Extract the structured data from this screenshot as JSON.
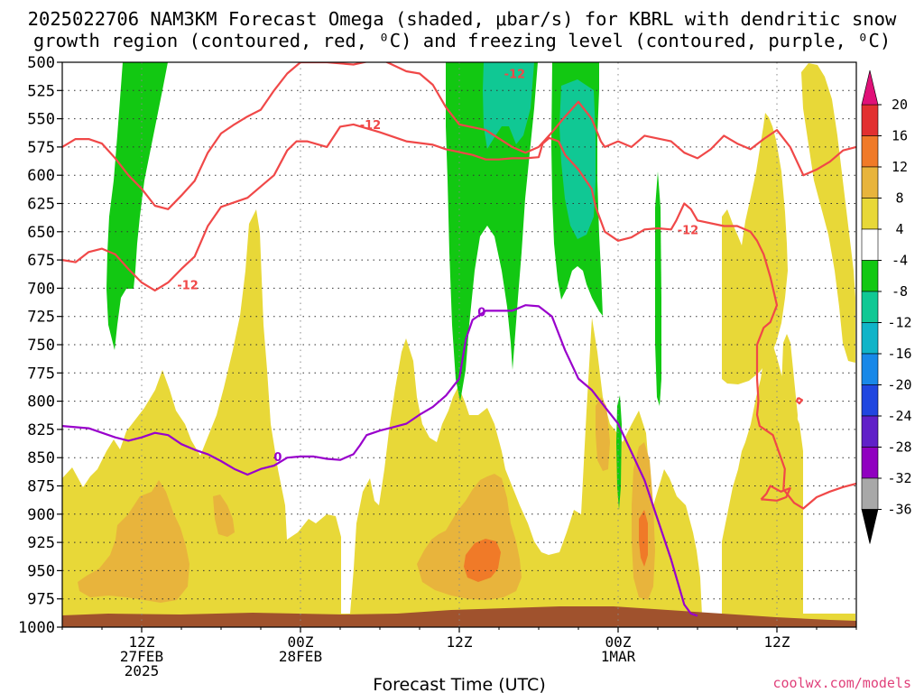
{
  "title_line1": "2025022706 NAM3KM Forecast Omega (shaded, μbar/s) for KBRL with dendritic snow",
  "title_line2": "growth region (contoured, red, ⁰C) and freezing level (contoured, purple, ⁰C)",
  "xlabel": "Forecast Time (UTC)",
  "credit": "coolwx.com/models",
  "chart_data": {
    "type": "heatmap",
    "x_ticks": [
      {
        "hour": 6,
        "lines": [
          "12Z",
          "27FEB",
          "2025"
        ]
      },
      {
        "hour": 18,
        "lines": [
          "00Z",
          "28FEB"
        ]
      },
      {
        "hour": 30,
        "lines": [
          "12Z"
        ]
      },
      {
        "hour": 42,
        "lines": [
          "00Z",
          "1MAR"
        ]
      },
      {
        "hour": 54,
        "lines": [
          "12Z"
        ]
      }
    ],
    "xlim_hours": [
      0,
      60
    ],
    "y_ticks": [
      500,
      525,
      550,
      575,
      600,
      625,
      650,
      675,
      700,
      725,
      750,
      775,
      800,
      825,
      850,
      875,
      900,
      925,
      950,
      975,
      1000
    ],
    "ylim_mb": [
      500,
      1000
    ],
    "grid": true,
    "colorbar_ticks": [
      20,
      16,
      12,
      8,
      4,
      -4,
      -8,
      -12,
      -16,
      -20,
      -24,
      -28,
      -32,
      -36
    ],
    "colorbar_colors": [
      "#e23030",
      "#f07a28",
      "#e8b43c",
      "#e8d838",
      "#ffffff",
      "#12c812",
      "#10c894",
      "#10b4c8",
      "#1888e8",
      "#2046e0",
      "#6020c8",
      "#9000c0",
      "#a8a8a8"
    ],
    "colorbar_top_color": "#e01078",
    "colorbar_bottom_color": "#000000",
    "contours": [
      {
        "name": "-12",
        "label": "-12",
        "color": "#f04848",
        "points": [
          [
            0,
            575
          ],
          [
            1,
            568
          ],
          [
            2,
            568
          ],
          [
            3,
            572
          ],
          [
            4,
            585
          ],
          [
            5,
            600
          ],
          [
            6,
            612
          ],
          [
            7,
            627
          ],
          [
            8,
            630
          ],
          [
            9,
            618
          ],
          [
            10,
            605
          ],
          [
            11,
            580
          ],
          [
            12,
            563
          ],
          [
            13,
            555
          ],
          [
            14,
            548
          ],
          [
            15,
            542
          ],
          [
            16,
            525
          ],
          [
            17,
            510
          ],
          [
            18,
            500
          ],
          [
            20,
            500
          ],
          [
            22,
            502
          ],
          [
            24,
            497
          ],
          [
            26,
            508
          ],
          [
            27,
            510
          ],
          [
            28,
            520
          ],
          [
            29,
            540
          ],
          [
            30,
            555
          ],
          [
            32,
            560
          ],
          [
            34,
            575
          ],
          [
            35,
            580
          ],
          [
            36,
            575
          ],
          [
            37,
            562
          ],
          [
            38,
            548
          ],
          [
            39,
            535
          ],
          [
            40,
            550
          ],
          [
            40.7,
            570
          ],
          [
            41,
            575
          ],
          [
            42,
            570
          ],
          [
            43,
            575
          ],
          [
            44,
            565
          ],
          [
            46,
            570
          ],
          [
            47,
            580
          ],
          [
            48,
            585
          ],
          [
            49,
            577
          ],
          [
            50,
            565
          ],
          [
            51,
            572
          ],
          [
            52,
            577
          ],
          [
            53,
            568
          ],
          [
            54,
            560
          ],
          [
            55,
            575
          ],
          [
            56,
            600
          ],
          [
            57,
            595
          ],
          [
            58,
            588
          ],
          [
            59,
            578
          ],
          [
            60,
            575
          ]
        ]
      },
      {
        "name": "-12",
        "label": "-12",
        "color": "#f04848",
        "points": [
          [
            0,
            675
          ],
          [
            1,
            677
          ],
          [
            2,
            668
          ],
          [
            3,
            665
          ],
          [
            4,
            670
          ],
          [
            5,
            683
          ],
          [
            6,
            695
          ],
          [
            7,
            702
          ],
          [
            8,
            695
          ],
          [
            9,
            683
          ],
          [
            10,
            672
          ],
          [
            11,
            645
          ],
          [
            12,
            628
          ],
          [
            14,
            620
          ],
          [
            16,
            600
          ],
          [
            17,
            578
          ],
          [
            17.7,
            570
          ],
          [
            18.5,
            570
          ],
          [
            20,
            575
          ],
          [
            21,
            557
          ],
          [
            22,
            555
          ],
          [
            24,
            562
          ],
          [
            26,
            570
          ],
          [
            28,
            573
          ],
          [
            29,
            577
          ],
          [
            31,
            582
          ],
          [
            32,
            586
          ],
          [
            33,
            586
          ],
          [
            34,
            585
          ],
          [
            35,
            585
          ],
          [
            36,
            584
          ],
          [
            36.3,
            572
          ],
          [
            36.8,
            567
          ],
          [
            37.5,
            570
          ],
          [
            38,
            582
          ],
          [
            39,
            595
          ],
          [
            40,
            612
          ],
          [
            40.3,
            628
          ],
          [
            41,
            650
          ],
          [
            42,
            658
          ],
          [
            43,
            655
          ],
          [
            44,
            648
          ],
          [
            45,
            647
          ],
          [
            46,
            648
          ],
          [
            46.4,
            640
          ],
          [
            47,
            625
          ],
          [
            47.5,
            630
          ],
          [
            48,
            640
          ],
          [
            50,
            645
          ],
          [
            51,
            645
          ],
          [
            52,
            650
          ],
          [
            52.5,
            658
          ],
          [
            53,
            670
          ],
          [
            53.5,
            690
          ],
          [
            54,
            715
          ],
          [
            53.5,
            730
          ],
          [
            53,
            735
          ],
          [
            52.5,
            750
          ],
          [
            52.5,
            780
          ],
          [
            52.6,
            800
          ],
          [
            52.5,
            812
          ],
          [
            52.7,
            822
          ],
          [
            53.7,
            830
          ],
          [
            54,
            840
          ],
          [
            54.6,
            860
          ],
          [
            54.5,
            878
          ],
          [
            55.3,
            890
          ],
          [
            56,
            895
          ],
          [
            57,
            885
          ],
          [
            58,
            880
          ],
          [
            59,
            876
          ],
          [
            60,
            873
          ]
        ]
      },
      {
        "name": "-12",
        "label": "-12",
        "color": "#f04848",
        "points": [
          [
            52.8,
            887
          ],
          [
            53.2,
            882
          ],
          [
            53.5,
            875
          ],
          [
            54.3,
            880
          ],
          [
            55,
            877
          ],
          [
            54.7,
            885
          ],
          [
            54,
            888
          ],
          [
            53,
            887
          ],
          [
            52.8,
            887
          ]
        ]
      },
      {
        "name": "-12",
        "label": "-12",
        "color": "#f04848",
        "points": [
          [
            55.6,
            797
          ],
          [
            55.9,
            799
          ],
          [
            55.7,
            802
          ],
          [
            55.5,
            800
          ],
          [
            55.6,
            797
          ]
        ]
      },
      {
        "name": "0",
        "label": "0",
        "color": "#9900cc",
        "points": [
          [
            0,
            822
          ],
          [
            2,
            824
          ],
          [
            4,
            832
          ],
          [
            5,
            835
          ],
          [
            6,
            832
          ],
          [
            7,
            828
          ],
          [
            8,
            830
          ],
          [
            9,
            838
          ],
          [
            10,
            843
          ],
          [
            11,
            847
          ],
          [
            12,
            853
          ],
          [
            13,
            860
          ],
          [
            14,
            865
          ],
          [
            15,
            860
          ],
          [
            16,
            857
          ],
          [
            17,
            850
          ],
          [
            18,
            849
          ],
          [
            19,
            849
          ],
          [
            20,
            851
          ],
          [
            21,
            852
          ],
          [
            22,
            847
          ],
          [
            22.5,
            839
          ],
          [
            23,
            830
          ],
          [
            24,
            826
          ],
          [
            25,
            823
          ],
          [
            26,
            820
          ],
          [
            27,
            812
          ],
          [
            28,
            805
          ],
          [
            29,
            795
          ],
          [
            30,
            780
          ],
          [
            30.5,
            745
          ],
          [
            31,
            728
          ],
          [
            32,
            720
          ],
          [
            33,
            720
          ],
          [
            34,
            720
          ],
          [
            35,
            715
          ],
          [
            36,
            716
          ],
          [
            37,
            725
          ],
          [
            37.5,
            740
          ],
          [
            38,
            755
          ],
          [
            39,
            780
          ],
          [
            40,
            790
          ],
          [
            41,
            805
          ],
          [
            42,
            820
          ],
          [
            43,
            845
          ],
          [
            44,
            870
          ],
          [
            45,
            905
          ],
          [
            46,
            940
          ],
          [
            47,
            980
          ],
          [
            47.5,
            988
          ],
          [
            48,
            990
          ]
        ]
      }
    ]
  }
}
